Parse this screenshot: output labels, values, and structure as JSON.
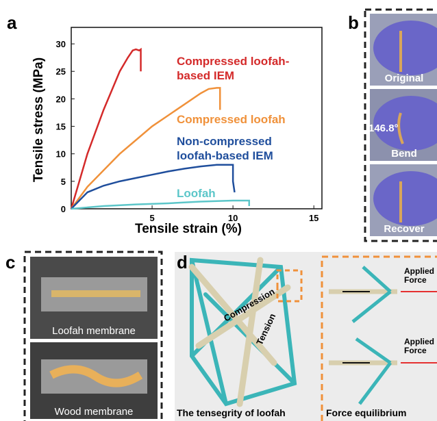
{
  "chart_data": {
    "type": "line",
    "xlabel": "Tensile strain (%)",
    "ylabel": "Tensile stress (MPa)",
    "xlim": [
      0,
      15.5
    ],
    "ylim": [
      0,
      33
    ],
    "xticks": [
      5,
      10,
      15
    ],
    "yticks": [
      0,
      5,
      10,
      15,
      20,
      25,
      30
    ],
    "series": [
      {
        "label_lines": [
          "Compressed loofah-",
          "based IEM"
        ],
        "color": "#d42a2a",
        "x": [
          0,
          0.5,
          1,
          1.5,
          2,
          2.5,
          3,
          3.5,
          3.8,
          4.0,
          4.2,
          4.3,
          4.3
        ],
        "values": [
          0,
          5,
          10,
          14,
          18,
          21.5,
          25,
          27.5,
          28.8,
          29,
          28.8,
          29,
          25
        ]
      },
      {
        "label_lines": [
          "Compressed loofah"
        ],
        "color": "#f0913a",
        "x": [
          0,
          1,
          2,
          3,
          4,
          5,
          6,
          7,
          8,
          8.5,
          9,
          9.2,
          9.2
        ],
        "values": [
          0,
          4,
          7,
          10,
          12.5,
          15,
          17,
          19,
          21,
          21.8,
          22,
          22,
          18
        ]
      },
      {
        "label_lines": [
          "Non-compressed",
          "loofah-based IEM"
        ],
        "color": "#1f4e9c",
        "x": [
          0,
          1,
          2,
          3,
          4,
          5,
          6,
          7,
          8,
          9,
          10,
          10,
          10.1
        ],
        "values": [
          0,
          3,
          4.2,
          5,
          5.6,
          6.2,
          6.8,
          7.3,
          7.7,
          8,
          8,
          5,
          3
        ]
      },
      {
        "label_lines": [
          "Loofah"
        ],
        "color": "#5cc6c9",
        "x": [
          0,
          2,
          4,
          6,
          8,
          10,
          11,
          11
        ],
        "values": [
          0,
          0.5,
          0.8,
          1,
          1.3,
          1.5,
          1.5,
          0.5
        ]
      }
    ]
  },
  "panels": {
    "a": "a",
    "b": {
      "letter": "b",
      "photos": [
        "Original",
        "Bend",
        "Recover"
      ],
      "angle": "146.8°"
    },
    "c": {
      "letter": "c",
      "photos": [
        "Loofah membrane",
        "Wood membrane"
      ]
    },
    "d": {
      "letter": "d",
      "compression": "Compression",
      "tension": "Tension",
      "left_caption": "The tensegrity of loofah",
      "right_caption": "Force equilibrium",
      "applied": [
        "Applied",
        "Force"
      ]
    }
  }
}
